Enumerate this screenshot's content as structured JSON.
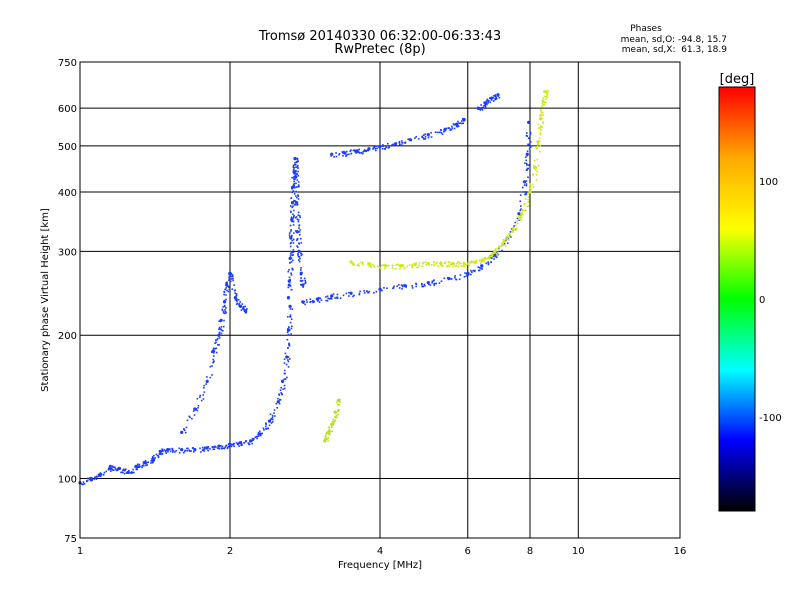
{
  "chart_data": {
    "type": "scatter",
    "title": "Tromsø 20140330 06:32:00-06:33:43",
    "subtitle": "RwPretec (8p)",
    "xlabel": "Frequency [MHz]",
    "ylabel": "Stationary phase Virtual Height [km]",
    "x_scale": "log",
    "y_scale": "log",
    "xlim": [
      1,
      16
    ],
    "ylim": [
      75,
      750
    ],
    "x_ticks": [
      1,
      2,
      4,
      6,
      8,
      10,
      16
    ],
    "y_ticks": [
      75,
      100,
      200,
      300,
      400,
      500,
      600,
      750
    ],
    "grid": true,
    "phase_stats": {
      "title": "Phases",
      "line1": "mean, sd,O: -94.8, 15.7",
      "line2": "mean, sd,X:  61.3, 18.9"
    },
    "colorbar": {
      "label": "[deg]",
      "range": [
        -180,
        180
      ],
      "ticks": [
        100,
        0,
        -100
      ],
      "colors": [
        "#ff0000",
        "#ffaa00",
        "#ffff00",
        "#00ff00",
        "#00ffff",
        "#0000ff",
        "#000000"
      ]
    },
    "series": [
      {
        "color": "#1a3cff",
        "x": [
          1.0,
          1.05,
          1.1,
          1.15,
          1.2,
          1.25,
          1.3,
          1.35,
          1.4,
          1.45,
          1.5,
          1.6,
          1.7,
          1.8,
          1.9,
          2.0,
          2.1,
          2.2,
          2.3,
          2.4,
          2.5,
          2.55,
          2.6,
          2.62,
          2.64
        ],
        "y": [
          98,
          100,
          102,
          106,
          105,
          103,
          106,
          108,
          110,
          114,
          115,
          115,
          115,
          116,
          117,
          118,
          119,
          120,
          124,
          132,
          145,
          160,
          180,
          205,
          230
        ]
      },
      {
        "color": "#1a3cff",
        "x": [
          2.62,
          2.63,
          2.64,
          2.65,
          2.66,
          2.67,
          2.68,
          2.69,
          2.7,
          2.71,
          2.72,
          2.73,
          2.75,
          2.78,
          2.8
        ],
        "y": [
          240,
          260,
          290,
          320,
          350,
          380,
          410,
          440,
          470,
          430,
          380,
          330,
          300,
          270,
          255
        ]
      },
      {
        "color": "#1a3cff",
        "x": [
          1.6,
          1.7,
          1.8,
          1.85,
          1.9,
          1.92,
          1.95,
          1.97,
          2.0,
          2.05,
          2.1,
          2.15
        ],
        "y": [
          125,
          140,
          160,
          185,
          200,
          215,
          235,
          255,
          270,
          240,
          230,
          225
        ]
      },
      {
        "color": "#1a3cff",
        "x": [
          2.8,
          3.0,
          3.2,
          3.5,
          4.0,
          4.5,
          5.0,
          5.5,
          6.0,
          6.4,
          6.8,
          7.2,
          7.6,
          7.8,
          7.9,
          7.95
        ],
        "y": [
          235,
          238,
          242,
          245,
          250,
          254,
          258,
          263,
          270,
          280,
          295,
          320,
          360,
          420,
          480,
          560
        ]
      },
      {
        "color": "#1a3cff",
        "x": [
          3.2,
          3.4,
          3.6,
          3.8,
          4.0,
          4.3,
          4.6,
          5.0,
          5.4,
          5.7,
          5.9
        ],
        "y": [
          480,
          483,
          488,
          493,
          498,
          505,
          515,
          528,
          540,
          555,
          568
        ]
      },
      {
        "color": "#1a3cff",
        "x": [
          6.3,
          6.5,
          6.7,
          6.9
        ],
        "y": [
          600,
          615,
          630,
          640
        ]
      },
      {
        "color": "#cfe81a",
        "x": [
          3.5,
          3.8,
          4.1,
          4.4,
          4.7,
          5.0,
          5.3,
          5.6,
          5.9,
          6.2,
          6.5,
          6.8,
          7.1,
          7.4,
          7.7,
          8.0,
          8.2,
          8.3,
          8.4,
          8.5,
          8.6
        ],
        "y": [
          285,
          282,
          280,
          280,
          282,
          283,
          283,
          283,
          283,
          285,
          290,
          300,
          315,
          335,
          360,
          400,
          450,
          510,
          570,
          620,
          650
        ]
      },
      {
        "color": "#b8e020",
        "x": [
          3.1,
          3.15,
          3.2,
          3.25,
          3.3
        ],
        "y": [
          120,
          125,
          130,
          138,
          146
        ]
      }
    ]
  }
}
